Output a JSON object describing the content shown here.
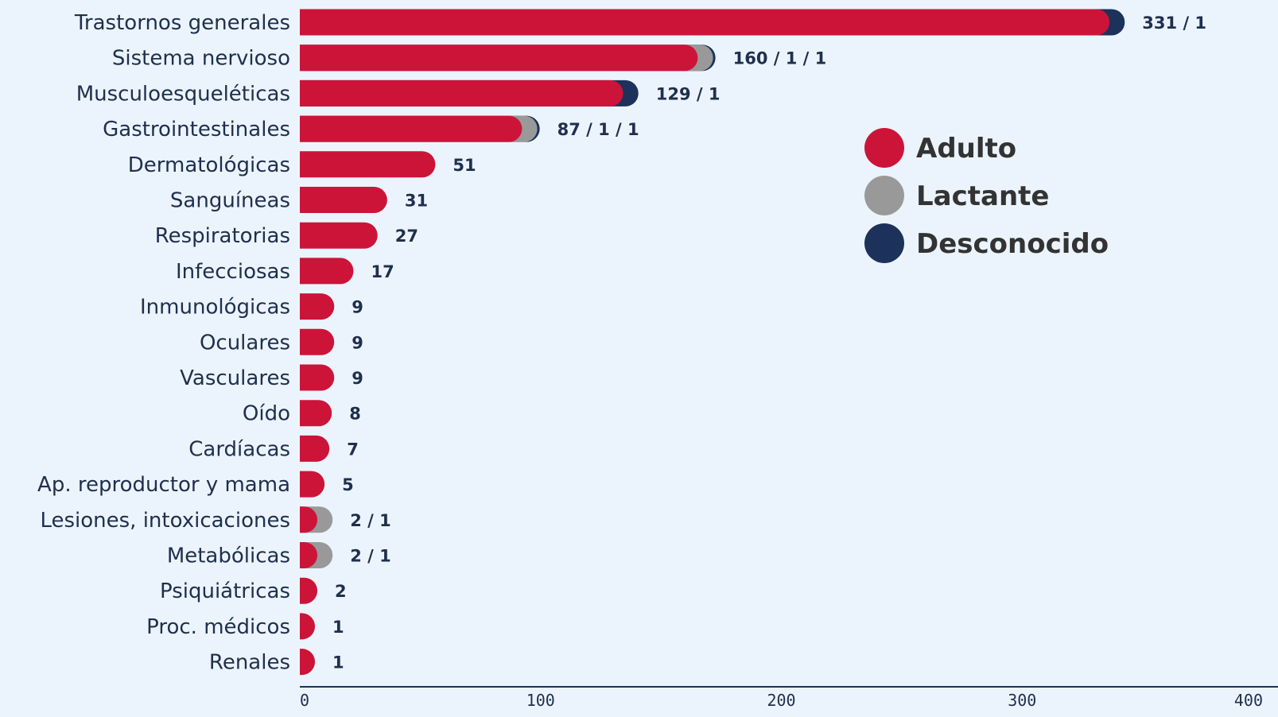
{
  "chart_data": {
    "type": "bar",
    "orientation": "horizontal",
    "stacked": true,
    "bar_style": "rounded-end",
    "categories": [
      "Trastornos generales",
      "Sistema nervioso",
      "Musculoesqueléticas",
      "Gastrointestinales",
      "Dermatológicas",
      "Sanguíneas",
      "Respiratorias",
      "Infecciosas",
      "Inmunológicas",
      "Oculares",
      "Vasculares",
      "Oído",
      "Cardíacas",
      "Ap. reproductor y mama",
      "Lesiones, intoxicaciones",
      "Metabólicas",
      "Psiquiátricas",
      "Proc. médicos",
      "Renales"
    ],
    "series": [
      {
        "name": "Adulto",
        "color": "#cc1439",
        "values": [
          331,
          160,
          129,
          87,
          51,
          31,
          27,
          17,
          9,
          9,
          9,
          8,
          7,
          5,
          2,
          2,
          2,
          1,
          1
        ]
      },
      {
        "name": "Lactante",
        "color": "#999999",
        "values": [
          0,
          1,
          0,
          1,
          0,
          0,
          0,
          0,
          0,
          0,
          0,
          0,
          0,
          0,
          1,
          1,
          0,
          0,
          0
        ]
      },
      {
        "name": "Desconocido",
        "color": "#1c325a",
        "values": [
          1,
          1,
          1,
          1,
          0,
          0,
          0,
          0,
          0,
          0,
          0,
          0,
          0,
          0,
          0,
          0,
          0,
          0,
          0
        ]
      }
    ],
    "value_labels": [
      "331 / 1",
      "160 / 1 / 1",
      "129 / 1",
      "87 / 1 / 1",
      "51",
      "31",
      "27",
      "17",
      "9",
      "9",
      "9",
      "8",
      "7",
      "5",
      "2 / 1",
      "2 / 1",
      "2",
      "1",
      "1"
    ],
    "xlim": [
      0,
      400
    ],
    "xticks": [
      0,
      100,
      200,
      300,
      400
    ],
    "grid": false,
    "legend_position": "top-right",
    "title": "",
    "xlabel": "",
    "ylabel": ""
  }
}
